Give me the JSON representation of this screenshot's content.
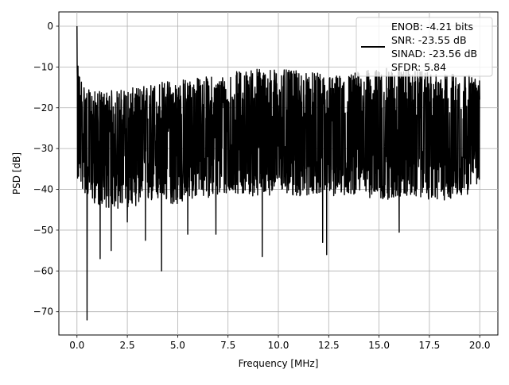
{
  "chart_data": {
    "type": "line",
    "title": "",
    "xlabel": "Frequency [MHz]",
    "ylabel": "PSD [dB]",
    "xlim": [
      -0.9,
      20.9
    ],
    "ylim": [
      -75.7,
      3.5
    ],
    "x_ticks": [
      0.0,
      2.5,
      5.0,
      7.5,
      10.0,
      12.5,
      15.0,
      17.5,
      20.0
    ],
    "x_tick_labels": [
      "0.0",
      "2.5",
      "5.0",
      "7.5",
      "10.0",
      "12.5",
      "15.0",
      "17.5",
      "20.0"
    ],
    "y_ticks": [
      0,
      -10,
      -20,
      -30,
      -40,
      -50,
      -60,
      -70
    ],
    "y_tick_labels": [
      "0",
      "−10",
      "−20",
      "−30",
      "−40",
      "−50",
      "−60",
      "−70"
    ],
    "grid": true,
    "legend_position": "top-right",
    "legend_lines": [
      "ENOB: -4.21 bits",
      "SNR: -23.55 dB",
      "SINAD: -23.56 dB",
      "SFDR: 5.84"
    ],
    "series_color": "#000000",
    "series": [
      {
        "points_x": [
          0.0,
          0.05,
          0.12,
          0.2,
          0.5,
          1.15,
          1.7,
          2.5,
          3.4,
          4.2,
          5.5,
          6.9,
          9.2,
          12.2,
          12.4,
          16.0,
          20.0
        ],
        "points_y": [
          0.0,
          -9.8,
          -15.0,
          -38.0,
          -72.0,
          -57.0,
          -55.0,
          -48.0,
          -52.5,
          -60.0,
          -51.0,
          -51.0,
          -56.5,
          -53.0,
          -56.0,
          -50.5,
          -18.0
        ],
        "band_x": [
          0.0,
          0.5,
          1.0,
          2.0,
          3.0,
          4.0,
          5.0,
          6.0,
          7.0,
          8.0,
          9.0,
          10.0,
          11.0,
          12.0,
          13.0,
          14.0,
          15.0,
          16.0,
          17.0,
          18.0,
          19.0,
          20.0
        ],
        "band_top": [
          -10.0,
          -15.5,
          -16.0,
          -15.5,
          -15.0,
          -13.5,
          -13.0,
          -12.5,
          -12.0,
          -11.0,
          -10.0,
          -10.5,
          -11.0,
          -11.5,
          -12.0,
          -11.0,
          -10.5,
          -10.0,
          -11.0,
          -12.0,
          -11.0,
          -13.0
        ],
        "band_bottom": [
          -38.0,
          -42.0,
          -44.0,
          -45.0,
          -44.0,
          -43.0,
          -44.0,
          -42.0,
          -42.0,
          -41.0,
          -42.0,
          -41.0,
          -42.0,
          -41.0,
          -42.0,
          -41.0,
          -43.0,
          -42.0,
          -42.0,
          -43.0,
          -42.0,
          -40.0
        ]
      }
    ]
  }
}
